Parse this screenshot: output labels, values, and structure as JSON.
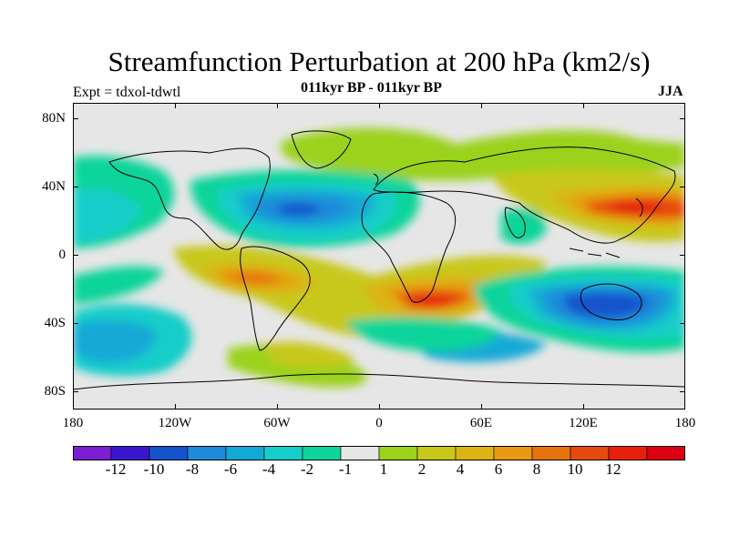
{
  "title": "Streamfunction Perturbation at 200 hPa (km2/s)",
  "subtitle": "011kyr BP - 011kyr BP",
  "experiment": "Expt = tdxol-tdwtl",
  "season": "JJA",
  "axes": {
    "lat_ticks": [
      "80N",
      "40N",
      "0",
      "40S",
      "80S"
    ],
    "lon_ticks": [
      "180",
      "120W",
      "60W",
      "0",
      "60E",
      "120E",
      "180"
    ]
  },
  "colorbar": {
    "colors": [
      "#7a1fd2",
      "#3a17cf",
      "#1553cc",
      "#1f8ad9",
      "#12a9d6",
      "#17cdc9",
      "#0fd49a",
      "#e6e6e6",
      "#9bd21b",
      "#c8c81a",
      "#dcb414",
      "#e69911",
      "#e6730d",
      "#e64a0e",
      "#e6200d",
      "#dc0010"
    ],
    "labels": [
      "-12",
      "-10",
      "-8",
      "-6",
      "-4",
      "-2",
      "-1",
      "1",
      "2",
      "4",
      "6",
      "8",
      "10",
      "12"
    ]
  }
}
